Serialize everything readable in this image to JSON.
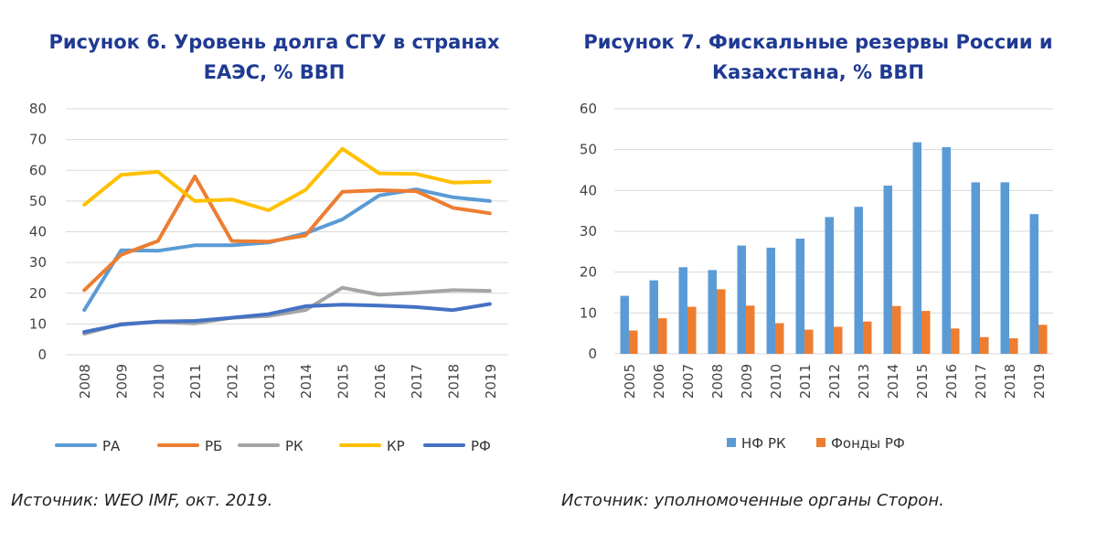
{
  "figures": {
    "left_title_line1": "Рисунок 6. Уровень долга СГУ в странах",
    "left_title_line2": "ЕАЭС, % ВВП",
    "right_title_line1": "Рисунок 7. Фискальные резервы России и",
    "right_title_line2": "Казахстана, % ВВП",
    "left_source": "Источник: WEO IMF, окт. 2019.",
    "right_source": "Источник: уполномоченные органы Сторон."
  },
  "chart_data": [
    {
      "type": "line",
      "title": "Рисунок 6. Уровень долга СГУ в странах ЕАЭС, % ВВП",
      "x": [
        "2008",
        "2009",
        "2010",
        "2011",
        "2012",
        "2013",
        "2014",
        "2015",
        "2016",
        "2017",
        "2018",
        "2019"
      ],
      "yticks": [
        "0",
        "10",
        "20",
        "30",
        "40",
        "50",
        "60",
        "70",
        "80"
      ],
      "ylim": [
        0,
        80
      ],
      "grid": true,
      "legend_position": "bottom",
      "series": [
        {
          "name": "РА",
          "color": "#5b9bd5",
          "values": [
            14.5,
            34,
            33.8,
            35.6,
            35.6,
            36.5,
            39.5,
            44,
            51.8,
            53.8,
            51.2,
            50
          ]
        },
        {
          "name": "РБ",
          "color": "#ed7d31",
          "values": [
            21,
            32.5,
            37,
            58,
            37,
            36.8,
            38.8,
            53,
            53.5,
            53.2,
            47.8,
            46
          ]
        },
        {
          "name": "РК",
          "color": "#a5a5a5",
          "values": [
            6.8,
            10,
            10.7,
            10.2,
            12,
            12.6,
            14.5,
            21.8,
            19.5,
            20.2,
            21,
            20.8
          ]
        },
        {
          "name": "КР",
          "color": "#ffc000",
          "values": [
            48.8,
            58.5,
            59.5,
            50,
            50.5,
            47,
            53.6,
            67,
            59,
            58.8,
            56,
            56.3
          ]
        },
        {
          "name": "РФ",
          "color": "#4472c4",
          "values": [
            7.4,
            9.8,
            10.8,
            11,
            12,
            13.2,
            15.8,
            16.3,
            16,
            15.5,
            14.5,
            16.5
          ]
        }
      ]
    },
    {
      "type": "bar",
      "title": "Рисунок 7. Фискальные резервы России и Казахстана, % ВВП",
      "categories": [
        "2005",
        "2006",
        "2007",
        "2008",
        "2009",
        "2010",
        "2011",
        "2012",
        "2013",
        "2014",
        "2015",
        "2016",
        "2017",
        "2018",
        "2019"
      ],
      "yticks": [
        "0",
        "10",
        "20",
        "30",
        "40",
        "50",
        "60"
      ],
      "ylim": [
        0,
        60
      ],
      "grid": true,
      "legend_position": "bottom",
      "series": [
        {
          "name": "НФ РК",
          "color": "#5b9bd5",
          "values": [
            14.2,
            18,
            21.2,
            20.5,
            26.5,
            26,
            28.2,
            33.5,
            36,
            41.2,
            51.8,
            50.6,
            42,
            42,
            34.2
          ]
        },
        {
          "name": "Фонды РФ",
          "color": "#ed7d31",
          "values": [
            5.7,
            8.7,
            11.5,
            15.8,
            11.8,
            7.5,
            5.9,
            6.6,
            7.9,
            11.7,
            10.5,
            6.2,
            4.1,
            3.8,
            7.1
          ]
        }
      ]
    }
  ]
}
